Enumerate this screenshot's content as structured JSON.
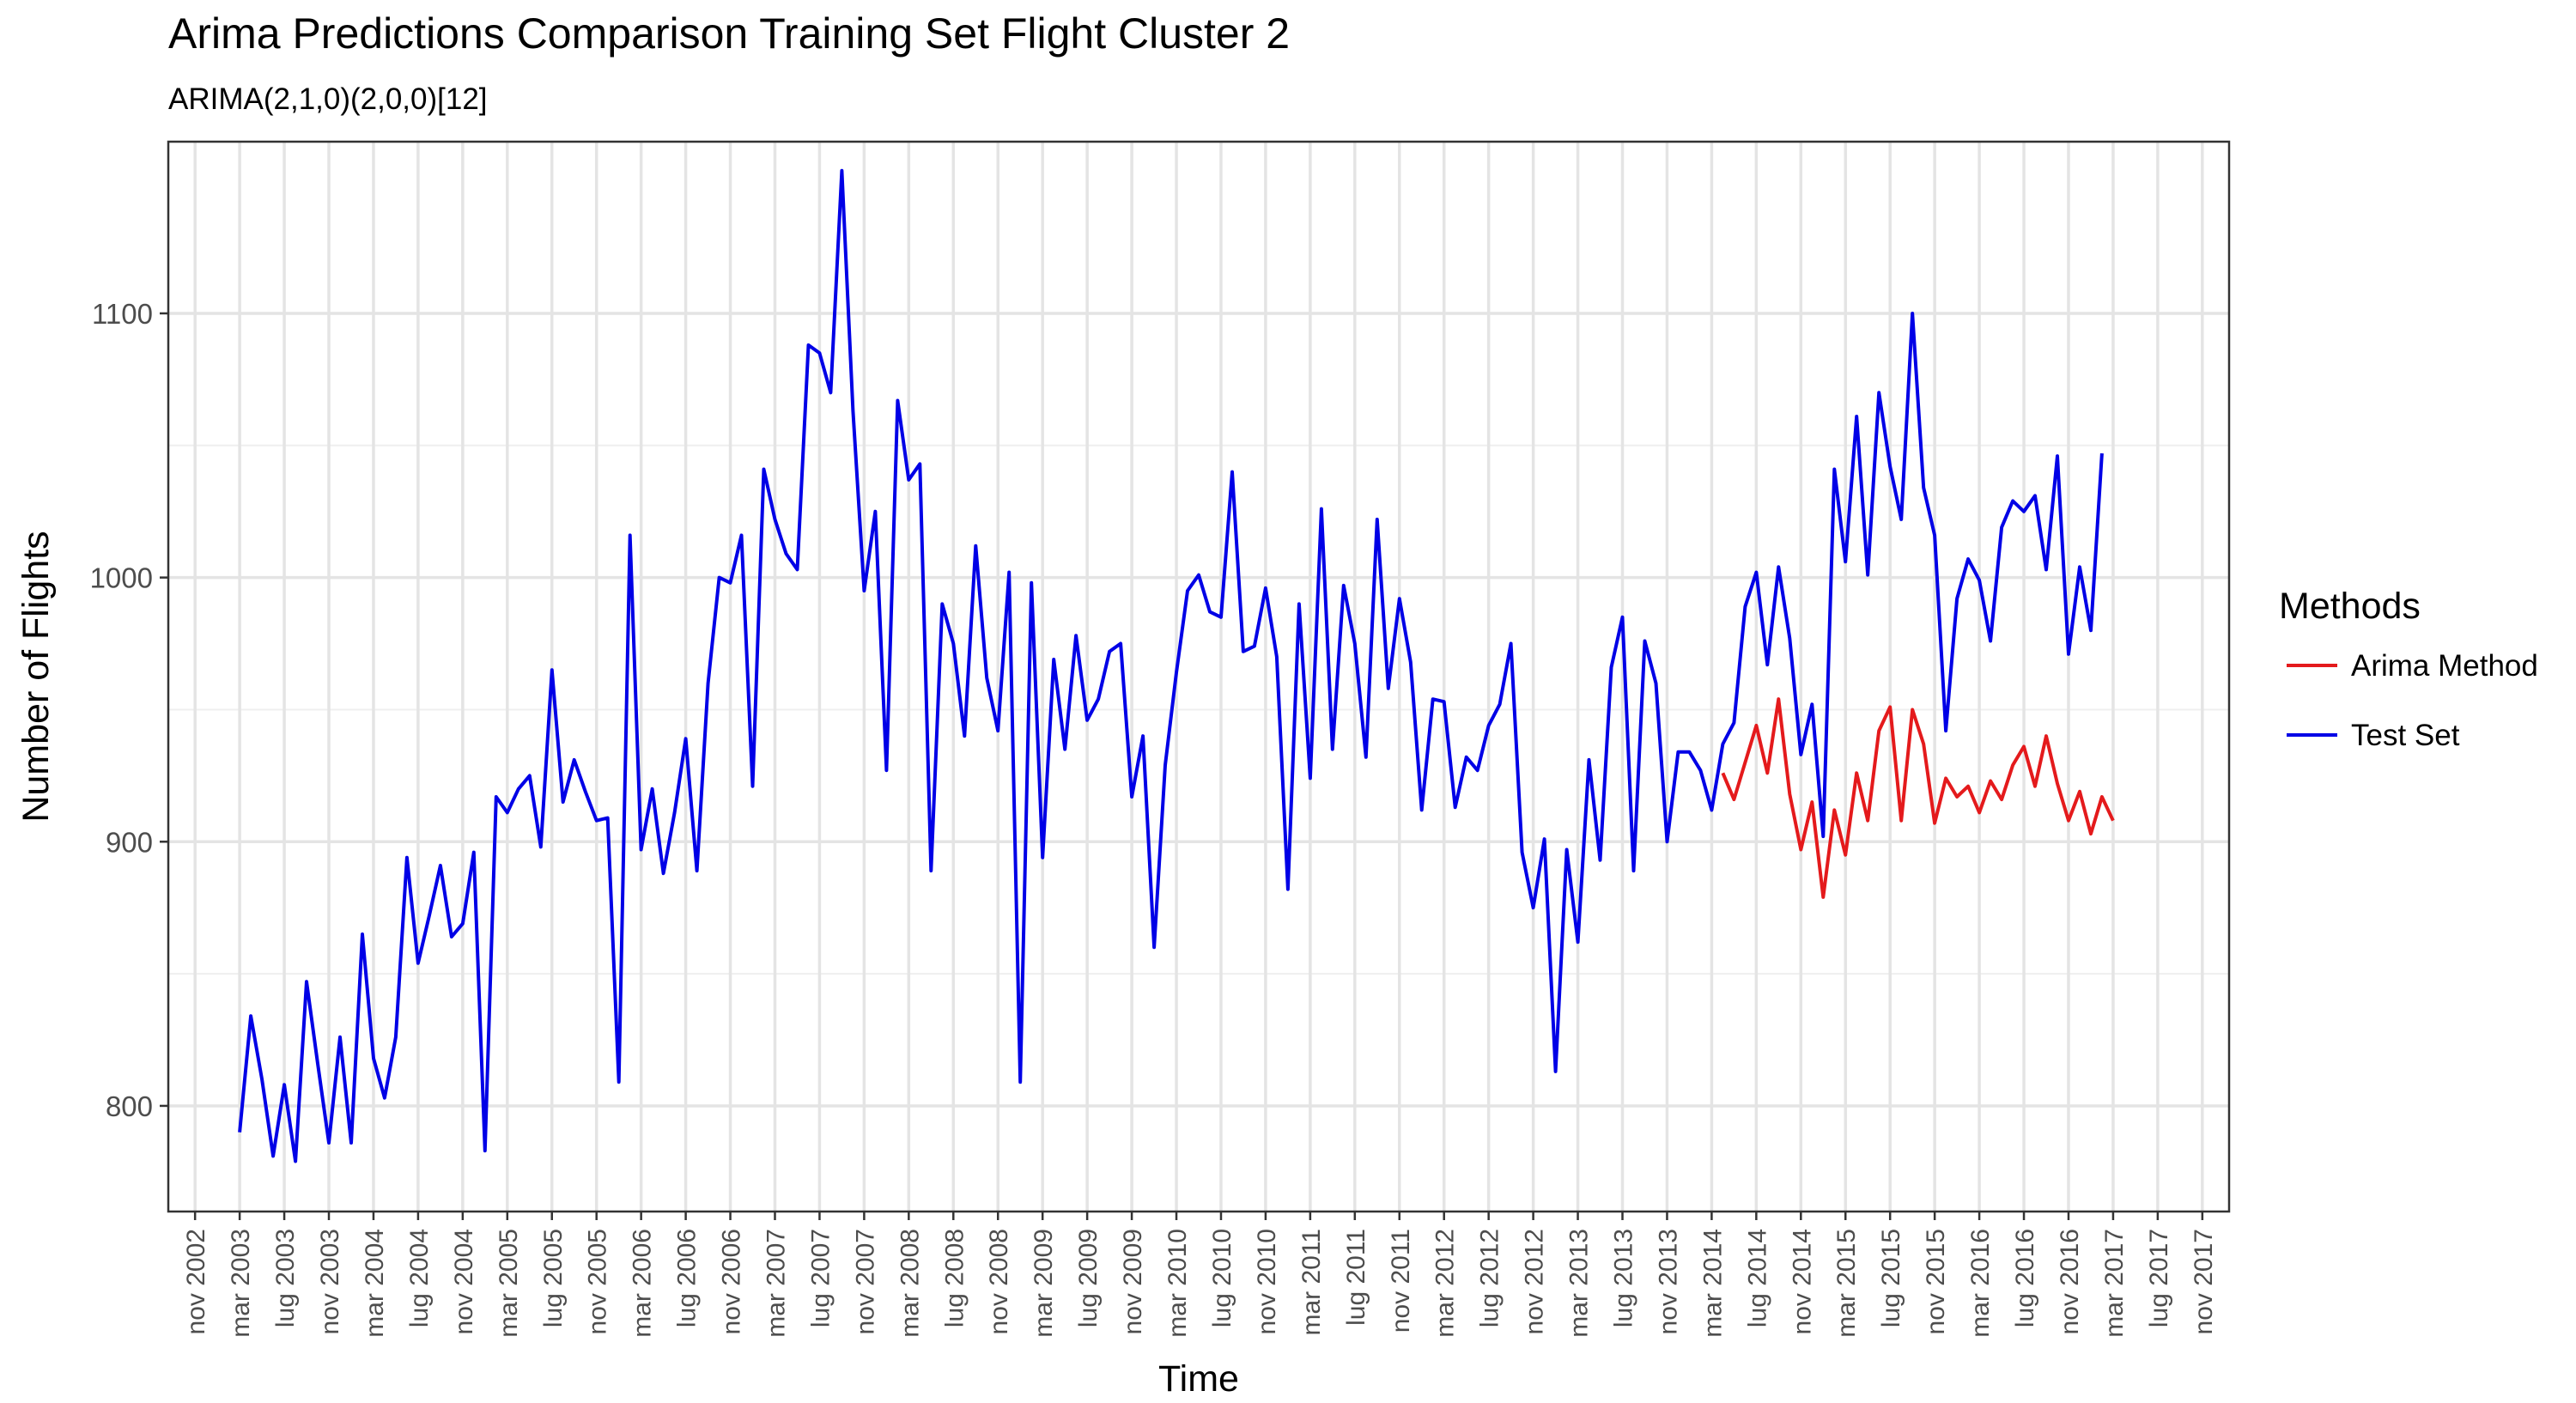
{
  "chart_data": {
    "type": "line",
    "title": "Arima Predictions Comparison Training Set Flight Cluster 2",
    "subtitle": "ARIMA(2,1,0)(2,0,0)[12]",
    "xlabel": "Time",
    "ylabel": "Number of Flights",
    "x_ticks": [
      "nov 2002",
      "mar 2003",
      "lug 2003",
      "nov 2003",
      "mar 2004",
      "lug 2004",
      "nov 2004",
      "mar 2005",
      "lug 2005",
      "nov 2005",
      "mar 2006",
      "lug 2006",
      "nov 2006",
      "mar 2007",
      "lug 2007",
      "nov 2007",
      "mar 2008",
      "lug 2008",
      "nov 2008",
      "mar 2009",
      "lug 2009",
      "nov 2009",
      "mar 2010",
      "lug 2010",
      "nov 2010",
      "mar 2011",
      "lug 2011",
      "nov 2011",
      "mar 2012",
      "lug 2012",
      "nov 2012",
      "mar 2013",
      "lug 2013",
      "nov 2013",
      "mar 2014",
      "lug 2014",
      "nov 2014",
      "mar 2015",
      "lug 2015",
      "nov 2015",
      "mar 2016",
      "lug 2016",
      "nov 2016",
      "mar 2017",
      "lug 2017",
      "nov 2017"
    ],
    "y_ticks": [
      800,
      900,
      1000,
      1100
    ],
    "ylim": [
      760,
      1165
    ],
    "x_start": "2003-03",
    "grid": true,
    "legend": {
      "title": "Methods",
      "placement": "right"
    },
    "series": [
      {
        "name": "Arima Method",
        "color": "#e41a1c",
        "start": "2014-04",
        "values": [
          926,
          916,
          930,
          944,
          926,
          954,
          918,
          897,
          915,
          879,
          912,
          895,
          926,
          908,
          942,
          951,
          908,
          950,
          937,
          907,
          924,
          917,
          921,
          911,
          923,
          916,
          929,
          936,
          921,
          940,
          922,
          908,
          919,
          903,
          917,
          908
        ]
      },
      {
        "name": "Test Set",
        "color": "#0000e6",
        "start": "2003-03",
        "values": [
          790,
          834,
          810,
          781,
          808,
          779,
          847,
          816,
          786,
          826,
          786,
          865,
          818,
          803,
          826,
          894,
          854,
          872,
          891,
          864,
          869,
          896,
          783,
          917,
          911,
          920,
          925,
          898,
          965,
          915,
          931,
          919,
          908,
          909,
          809,
          1016,
          897,
          920,
          888,
          911,
          939,
          889,
          960,
          1000,
          998,
          1016,
          921,
          1041,
          1022,
          1009,
          1003,
          1088,
          1085,
          1070,
          1154,
          1063,
          995,
          1025,
          927,
          1067,
          1037,
          1043,
          889,
          990,
          975,
          940,
          1012,
          962,
          942,
          1002,
          809,
          998,
          894,
          969,
          935,
          978,
          946,
          954,
          972,
          975,
          917,
          940,
          860,
          929,
          964,
          995,
          1001,
          987,
          985,
          1040,
          972,
          974,
          996,
          970,
          882,
          990,
          924,
          1026,
          935,
          997,
          975,
          932,
          1022,
          958,
          992,
          968,
          912,
          954,
          953,
          913,
          932,
          927,
          944,
          952,
          975,
          896,
          875,
          901,
          813,
          897,
          862,
          931,
          893,
          966,
          985,
          889,
          976,
          960,
          900,
          934,
          934,
          927,
          912,
          937,
          945,
          989,
          1002,
          967,
          1004,
          977,
          933,
          952,
          902,
          1041,
          1006,
          1061,
          1001,
          1070,
          1042,
          1022,
          1100,
          1034,
          1016,
          942,
          992,
          1007,
          999,
          976,
          1019,
          1029,
          1025,
          1031,
          1003,
          1046,
          971,
          1004,
          980,
          1047
        ]
      }
    ]
  }
}
